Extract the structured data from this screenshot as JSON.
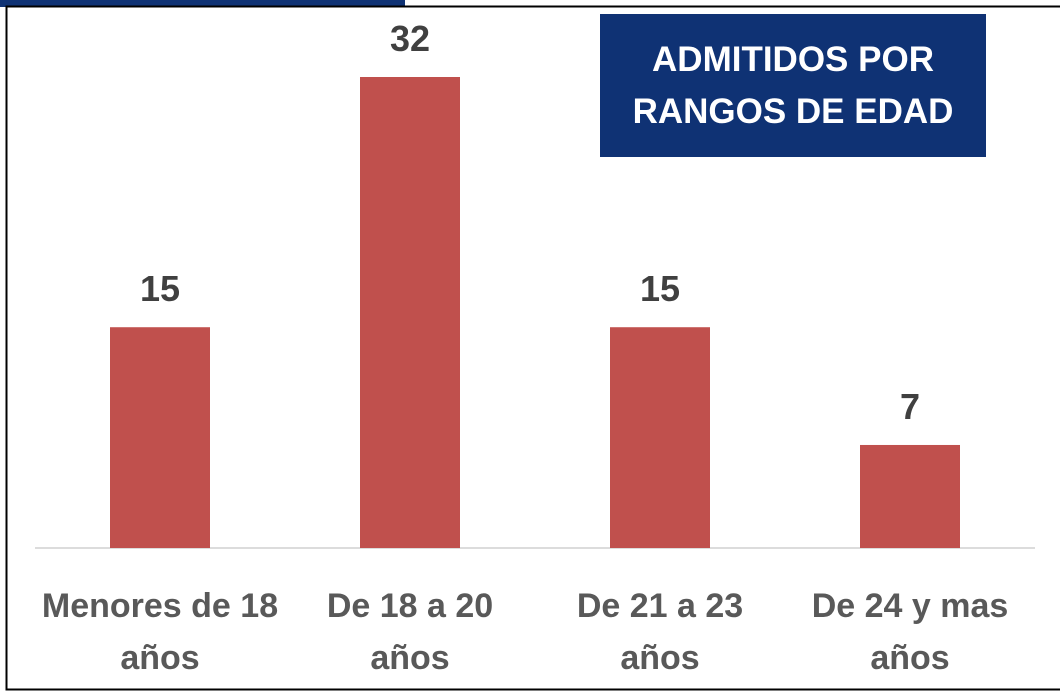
{
  "chart_data": {
    "type": "bar",
    "title": "ADMITIDOS POR RANGOS DE EDAD",
    "categories": [
      "Menores de 18 años",
      "De 18 a 20 años",
      "De 21 a 23 años",
      "De 24 y mas años"
    ],
    "values": [
      15,
      32,
      15,
      7
    ],
    "color": "#c0504d"
  }
}
